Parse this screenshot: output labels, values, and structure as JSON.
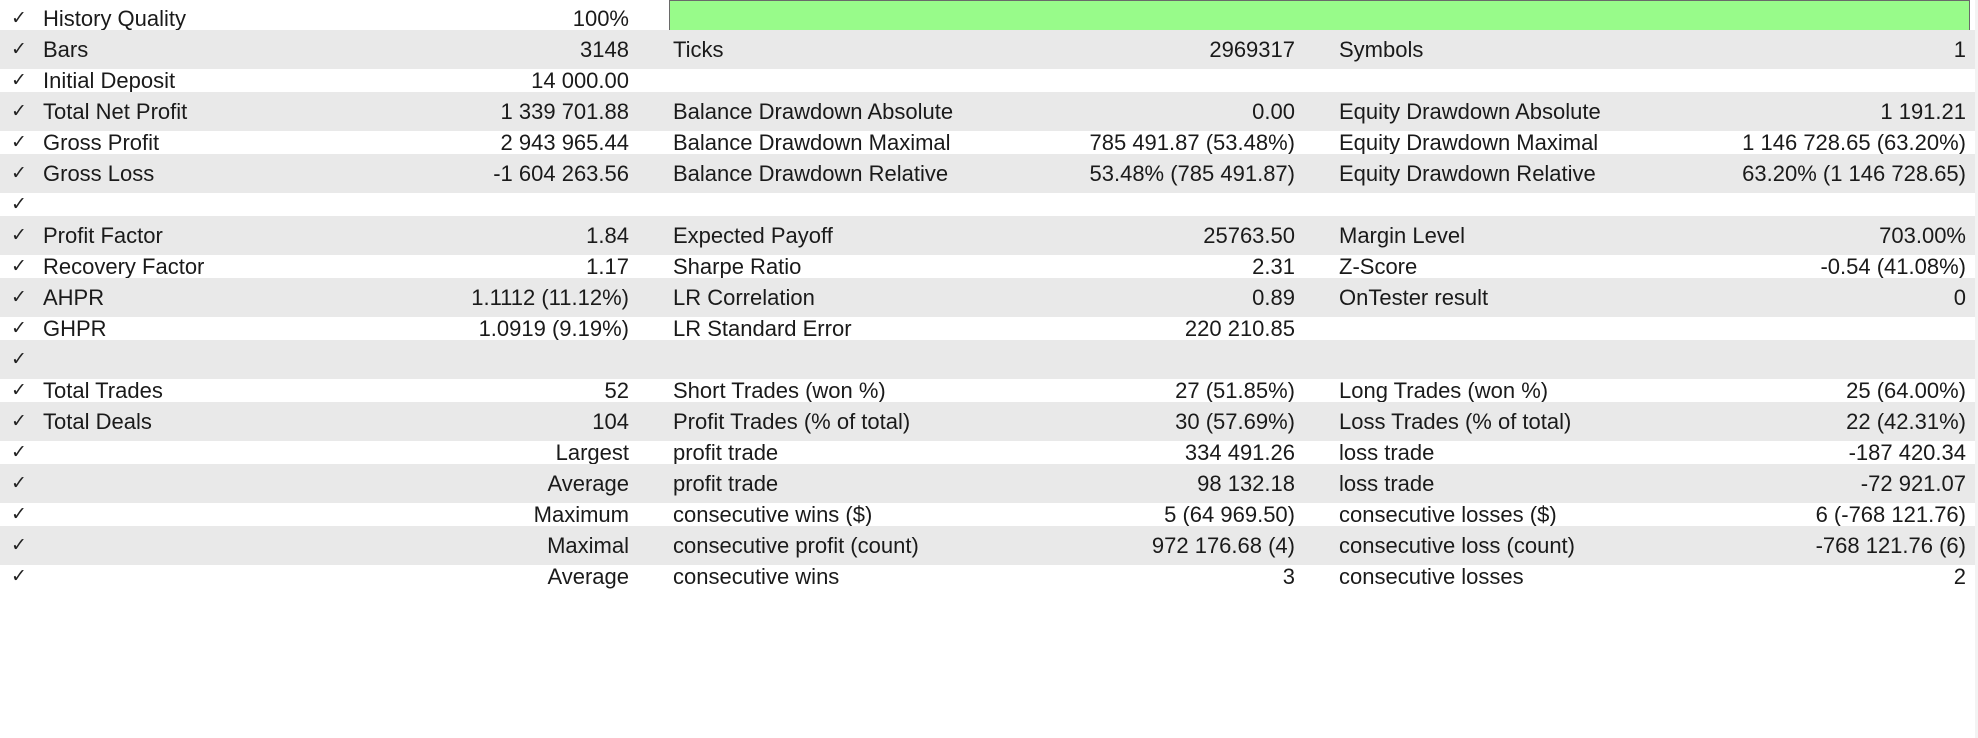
{
  "quality_bar_fill_percent": 100,
  "quality_bar_color": "#98fb8a",
  "check_glyph": "✓",
  "rows": [
    {
      "l1": "History Quality",
      "v1": "100%",
      "l2": "",
      "v2": "",
      "l3": "",
      "v3": ""
    },
    {
      "l1": "Bars",
      "v1": "3148",
      "l2": "Ticks",
      "v2": "2969317",
      "l3": "Symbols",
      "v3": "1"
    },
    {
      "l1": "Initial Deposit",
      "v1": "14 000.00",
      "l2": "",
      "v2": "",
      "l3": "",
      "v3": ""
    },
    {
      "l1": "Total Net Profit",
      "v1": "1 339 701.88",
      "l2": "Balance Drawdown Absolute",
      "v2": "0.00",
      "l3": "Equity Drawdown Absolute",
      "v3": "1 191.21"
    },
    {
      "l1": "Gross Profit",
      "v1": "2 943 965.44",
      "l2": "Balance Drawdown Maximal",
      "v2": "785 491.87 (53.48%)",
      "l3": "Equity Drawdown Maximal",
      "v3": "1 146 728.65 (63.20%)"
    },
    {
      "l1": "Gross Loss",
      "v1": "-1 604 263.56",
      "l2": "Balance Drawdown Relative",
      "v2": "53.48% (785 491.87)",
      "l3": "Equity Drawdown Relative",
      "v3": "63.20% (1 146 728.65)"
    },
    {
      "l1": "",
      "v1": "",
      "l2": "",
      "v2": "",
      "l3": "",
      "v3": ""
    },
    {
      "l1": "Profit Factor",
      "v1": "1.84",
      "l2": "Expected Payoff",
      "v2": "25763.50",
      "l3": "Margin Level",
      "v3": "703.00%"
    },
    {
      "l1": "Recovery Factor",
      "v1": "1.17",
      "l2": "Sharpe Ratio",
      "v2": "2.31",
      "l3": "Z-Score",
      "v3": "-0.54 (41.08%)"
    },
    {
      "l1": "AHPR",
      "v1": "1.1112 (11.12%)",
      "l2": "LR Correlation",
      "v2": "0.89",
      "l3": "OnTester result",
      "v3": "0"
    },
    {
      "l1": "GHPR",
      "v1": "1.0919 (9.19%)",
      "l2": "LR Standard Error",
      "v2": "220 210.85",
      "l3": "",
      "v3": ""
    },
    {
      "l1": "",
      "v1": "",
      "l2": "",
      "v2": "",
      "l3": "",
      "v3": ""
    },
    {
      "l1": "Total Trades",
      "v1": "52",
      "l2": "Short Trades (won %)",
      "v2": "27 (51.85%)",
      "l3": "Long Trades (won %)",
      "v3": "25 (64.00%)"
    },
    {
      "l1": "Total Deals",
      "v1": "104",
      "l2": "Profit Trades (% of total)",
      "v2": "30 (57.69%)",
      "l3": "Loss Trades (% of total)",
      "v3": "22 (42.31%)"
    },
    {
      "l1": "",
      "v1": "Largest",
      "l2": "profit trade",
      "v2": "334 491.26",
      "l3": "loss trade",
      "v3": "-187 420.34"
    },
    {
      "l1": "",
      "v1": "Average",
      "l2": "profit trade",
      "v2": "98 132.18",
      "l3": "loss trade",
      "v3": "-72 921.07"
    },
    {
      "l1": "",
      "v1": "Maximum",
      "l2": "consecutive wins ($)",
      "v2": "5 (64 969.50)",
      "l3": "consecutive losses ($)",
      "v3": "6 (-768 121.76)"
    },
    {
      "l1": "",
      "v1": "Maximal",
      "l2": "consecutive profit (count)",
      "v2": "972 176.68 (4)",
      "l3": "consecutive loss (count)",
      "v3": "-768 121.76 (6)"
    },
    {
      "l1": "",
      "v1": "Average",
      "l2": "consecutive wins",
      "v2": "3",
      "l3": "consecutive losses",
      "v3": "2"
    }
  ]
}
